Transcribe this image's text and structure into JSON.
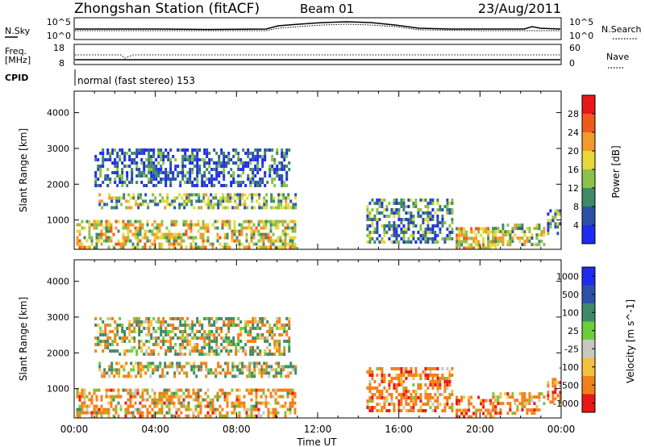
{
  "header": {
    "station": "Zhongshan Station (fitACF)",
    "beam": "Beam 01",
    "date": "23/Aug/2011"
  },
  "status_panels": {
    "nsky": {
      "label": "N.Sky",
      "ticks": [
        "10^5",
        "10^0"
      ]
    },
    "nsearch": {
      "label": "N.Search",
      "ticks": [
        "10^5",
        "10^0"
      ]
    },
    "freq": {
      "label_1": "Freq.",
      "label_2": "[MHz]",
      "ticks": [
        "18",
        "8"
      ]
    },
    "nave": {
      "label": "Nave",
      "ticks": [
        "60",
        "0"
      ]
    },
    "cpid": {
      "label": "CPID",
      "value": "normal (fast stereo) 153"
    }
  },
  "chart_data": [
    {
      "type": "heatmap",
      "title": "",
      "quantity": "Power",
      "xlabel": "",
      "ylabel": "Slant Range [km]",
      "x_ticks": [
        "00:00",
        "04:00",
        "08:00",
        "12:00",
        "16:00",
        "20:00",
        "00:00"
      ],
      "x_range_hours": [
        0,
        24
      ],
      "y_ticks": [
        1000,
        2000,
        3000,
        4000
      ],
      "ylim": [
        180,
        4600
      ],
      "colorbar": {
        "label": "Power [dB]",
        "ticks": [
          "4",
          "8",
          "12",
          "16",
          "20",
          "24",
          "28"
        ],
        "range": [
          0,
          30
        ],
        "colors": [
          "#1f2bf0",
          "#2b52a8",
          "#3f8a66",
          "#8ac24a",
          "#e8d83a",
          "#f29a2a",
          "#ef5a1a",
          "#e81818"
        ]
      },
      "echo_regions": [
        {
          "t_start": 0.1,
          "t_end": 10.9,
          "r_start": 250,
          "r_end": 1000,
          "value": 16
        },
        {
          "t_start": 1.2,
          "t_end": 10.9,
          "r_start": 1300,
          "r_end": 1750,
          "value": 12
        },
        {
          "t_start": 1.0,
          "t_end": 10.6,
          "r_start": 2000,
          "r_end": 3000,
          "value": 6
        },
        {
          "t_start": 14.4,
          "t_end": 18.6,
          "r_start": 400,
          "r_end": 1600,
          "value": 9
        },
        {
          "t_start": 18.8,
          "t_end": 20.8,
          "r_start": 250,
          "r_end": 800,
          "value": 18
        },
        {
          "t_start": 20.6,
          "t_end": 23.2,
          "r_start": 300,
          "r_end": 900,
          "value": 14
        },
        {
          "t_start": 23.3,
          "t_end": 24.0,
          "r_start": 600,
          "r_end": 1300,
          "value": 10
        }
      ]
    },
    {
      "type": "heatmap",
      "title": "",
      "quantity": "Velocity",
      "xlabel": "Time UT",
      "ylabel": "Slant Range [km]",
      "x_ticks": [
        "00:00",
        "04:00",
        "08:00",
        "12:00",
        "16:00",
        "20:00",
        "00:00"
      ],
      "x_range_hours": [
        0,
        24
      ],
      "y_ticks": [
        1000,
        2000,
        3000,
        4000
      ],
      "ylim": [
        180,
        4600
      ],
      "colorbar": {
        "label": "Velocity [m s^-1]",
        "ticks": [
          "1000",
          "500",
          "100",
          "25",
          "-25",
          "-100",
          "-500",
          "-1000"
        ],
        "colors": [
          "#1f2bf0",
          "#2b52a8",
          "#3f8a66",
          "#6ccf3a",
          "#c8c8c0",
          "#f2c23a",
          "#f2801a",
          "#e81818"
        ]
      },
      "echo_regions": [
        {
          "t_start": 0.1,
          "t_end": 10.9,
          "r_start": 250,
          "r_end": 1000,
          "value": -200
        },
        {
          "t_start": 1.2,
          "t_end": 10.9,
          "r_start": 1300,
          "r_end": 1750,
          "value": 0
        },
        {
          "t_start": 1.0,
          "t_end": 10.6,
          "r_start": 2000,
          "r_end": 3000,
          "value": 10
        },
        {
          "t_start": 14.4,
          "t_end": 18.6,
          "r_start": 400,
          "r_end": 1600,
          "value": -300
        },
        {
          "t_start": 18.8,
          "t_end": 20.8,
          "r_start": 250,
          "r_end": 800,
          "value": -300
        },
        {
          "t_start": 20.6,
          "t_end": 23.2,
          "r_start": 300,
          "r_end": 900,
          "value": -250
        },
        {
          "t_start": 23.3,
          "t_end": 24.0,
          "r_start": 600,
          "r_end": 1300,
          "value": -400
        }
      ]
    }
  ]
}
